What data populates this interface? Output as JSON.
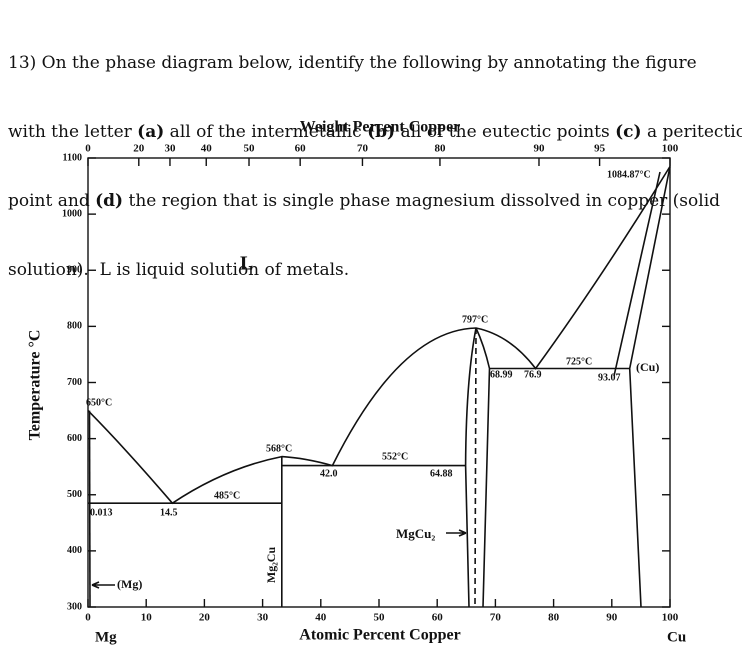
{
  "question": {
    "lines": [
      [
        "13) On the phase diagram below, identify the following by annotating the figure"
      ],
      [
        "with the letter ",
        "(a)",
        " all of the intermetallic ",
        "(b)",
        " all of the eutectic points ",
        "(c)",
        " a peritectic"
      ],
      [
        "point and ",
        "(d)",
        " the region that is single phase magnesium dissolved in copper (solid"
      ],
      [
        "solution).  L is liquid solution of metals."
      ]
    ]
  },
  "figure": {
    "top_axis_label": "Weight Percent Copper",
    "bottom_axis_label": "Atomic Percent Copper",
    "y_axis_label": "Temperature °C",
    "left_element": "Mg",
    "right_element": "Cu",
    "xlim": [
      0,
      100
    ],
    "ylim": [
      300,
      1100
    ],
    "xticks": [
      0,
      10,
      20,
      30,
      40,
      50,
      60,
      70,
      80,
      90,
      100
    ],
    "yticks": [
      300,
      400,
      500,
      600,
      700,
      800,
      900,
      1000,
      1100
    ],
    "weight_ticks": [
      0,
      20,
      30,
      40,
      50,
      60,
      70,
      80,
      90,
      95,
      100
    ],
    "annotations": {
      "liquid": "L",
      "cu_melt": "1084.87°C",
      "mgcu2_melt": "797°C",
      "eutectic_high": "725°C",
      "cu_phase": "(Cu)",
      "cu_solubility": "93.07",
      "mgcu2_right": "68.99",
      "eutectic_high_comp": "76.9",
      "mg2cu_melt": "568°C",
      "eutectic_mid": "552°C",
      "eutectic_mid_comp": "42.0",
      "mgcu2_left": "64.88",
      "eutectic_low": "485°C",
      "mg_melt": "650°C",
      "mg_solubility": "0.013",
      "eutectic_low_comp": "14.5",
      "mgcu2": "MgCu₂",
      "mg2cu": "Mg₂Cu",
      "mg_phase": "(Mg)"
    }
  }
}
